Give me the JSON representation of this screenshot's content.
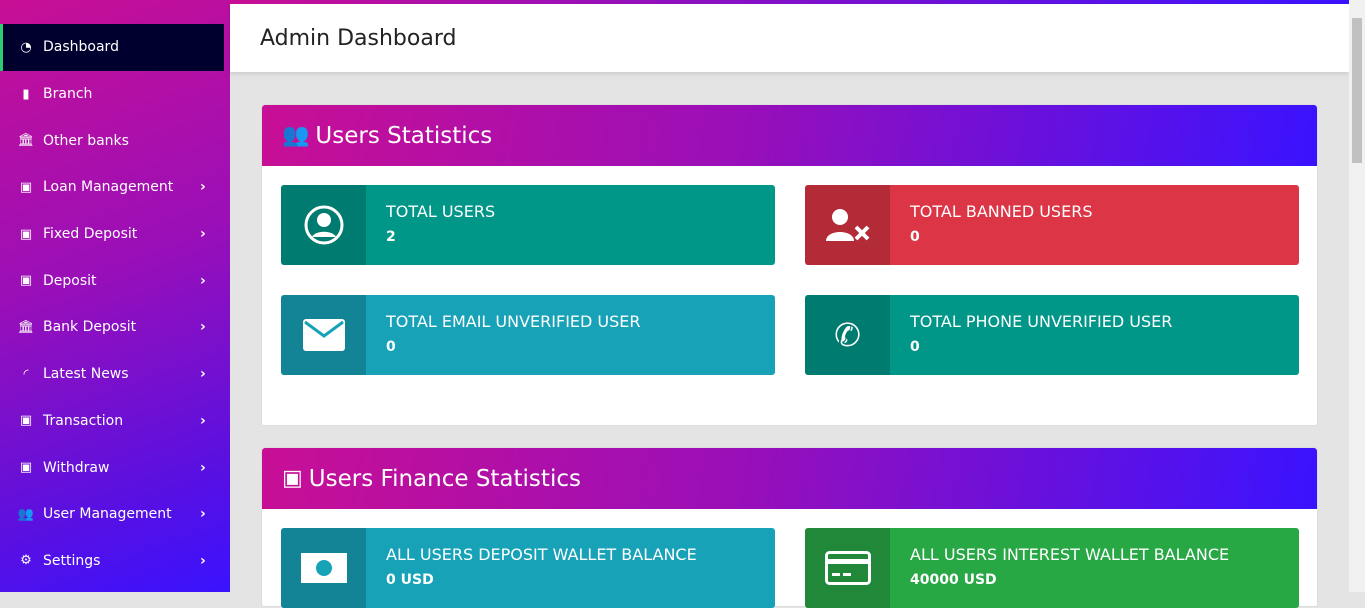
{
  "sidebar": {
    "items": [
      {
        "label": "Dashboard",
        "icon": "dashboard-icon",
        "active": true
      },
      {
        "label": "Branch",
        "icon": "building-icon"
      },
      {
        "label": "Other banks",
        "icon": "bank-icon"
      },
      {
        "label": "Loan Management",
        "icon": "money-icon",
        "submenu": true
      },
      {
        "label": "Fixed Deposit",
        "icon": "money-icon",
        "submenu": true
      },
      {
        "label": "Deposit",
        "icon": "money-icon",
        "submenu": true
      },
      {
        "label": "Bank Deposit",
        "icon": "bank-icon",
        "submenu": true
      },
      {
        "label": "Latest News",
        "icon": "rss-icon",
        "submenu": true
      },
      {
        "label": "Transaction",
        "icon": "money-icon",
        "submenu": true
      },
      {
        "label": "Withdraw",
        "icon": "money-icon",
        "submenu": true
      },
      {
        "label": "User Management",
        "icon": "users-icon",
        "submenu": true
      },
      {
        "label": "Settings",
        "icon": "cogs-icon",
        "submenu": true
      }
    ]
  },
  "header": {
    "title": "Admin Dashboard"
  },
  "users_stats": {
    "title": "Users Statistics",
    "boxes": [
      {
        "label": "TOTAL USERS",
        "value": "2",
        "color": "#009688"
      },
      {
        "label": "TOTAL BANNED USERS",
        "value": "0",
        "color": "#dc3545"
      },
      {
        "label": "TOTAL EMAIL UNVERIFIED USER",
        "value": "0",
        "color": "#17a2b8"
      },
      {
        "label": "TOTAL PHONE UNVERIFIED USER",
        "value": "0",
        "color": "#009688"
      }
    ]
  },
  "finance_stats": {
    "title": "Users Finance Statistics",
    "boxes": [
      {
        "label": "ALL USERS DEPOSIT WALLET BALANCE",
        "value": "0 USD",
        "color": "#17a2b8"
      },
      {
        "label": "ALL USERS INTEREST WALLET BALANCE",
        "value": "40000 USD",
        "color": "#28a745"
      }
    ]
  }
}
